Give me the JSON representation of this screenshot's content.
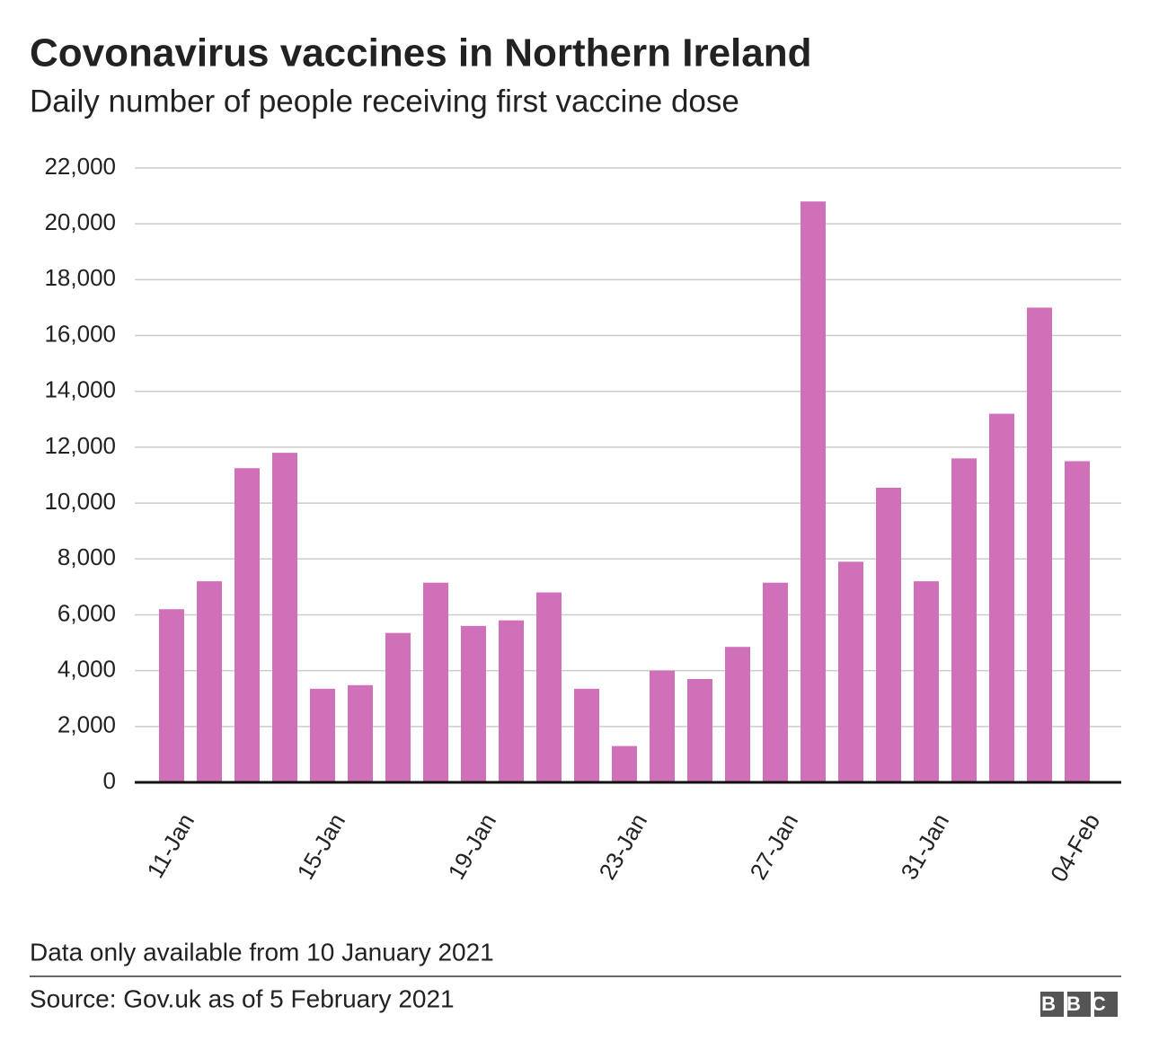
{
  "chart_data": {
    "type": "bar",
    "title": "Covonavirus vaccines in Northern Ireland",
    "subtitle": "Daily number of people receiving first vaccine dose",
    "categories": [
      "11-Jan",
      null,
      null,
      null,
      "15-Jan",
      null,
      null,
      null,
      "19-Jan",
      null,
      null,
      null,
      "23-Jan",
      null,
      null,
      null,
      "27-Jan",
      null,
      null,
      null,
      "31-Jan",
      null,
      null,
      null,
      "04-Feb"
    ],
    "values": [
      6200,
      7200,
      11250,
      11800,
      3350,
      3480,
      5350,
      7150,
      5600,
      5800,
      6800,
      3350,
      1300,
      4000,
      3700,
      4850,
      7150,
      20800,
      7900,
      10550,
      7200,
      11600,
      13200,
      17000,
      11500
    ],
    "color": "#d070b8",
    "ylim": [
      0,
      22000
    ],
    "yticks": [
      0,
      {
        "value": 2000,
        "label": "2,000"
      },
      {
        "value": 4000,
        "label": "4,000"
      },
      {
        "value": 6000,
        "label": "6,000"
      },
      {
        "value": 8000,
        "label": "8,000"
      },
      {
        "value": 10000,
        "label": "10,000"
      },
      {
        "value": 12000,
        "label": "12,000"
      },
      {
        "value": 14000,
        "label": "14,000"
      },
      {
        "value": 16000,
        "label": "16,000"
      },
      {
        "value": 18000,
        "label": "18,000"
      },
      {
        "value": 20000,
        "label": "20,000"
      },
      {
        "value": 22000,
        "label": "22,000"
      }
    ],
    "grid": true,
    "note": "Data only available from 10 January 2021",
    "source": "Source: Gov.uk as of 5 February 2021",
    "logo": "BBC"
  }
}
